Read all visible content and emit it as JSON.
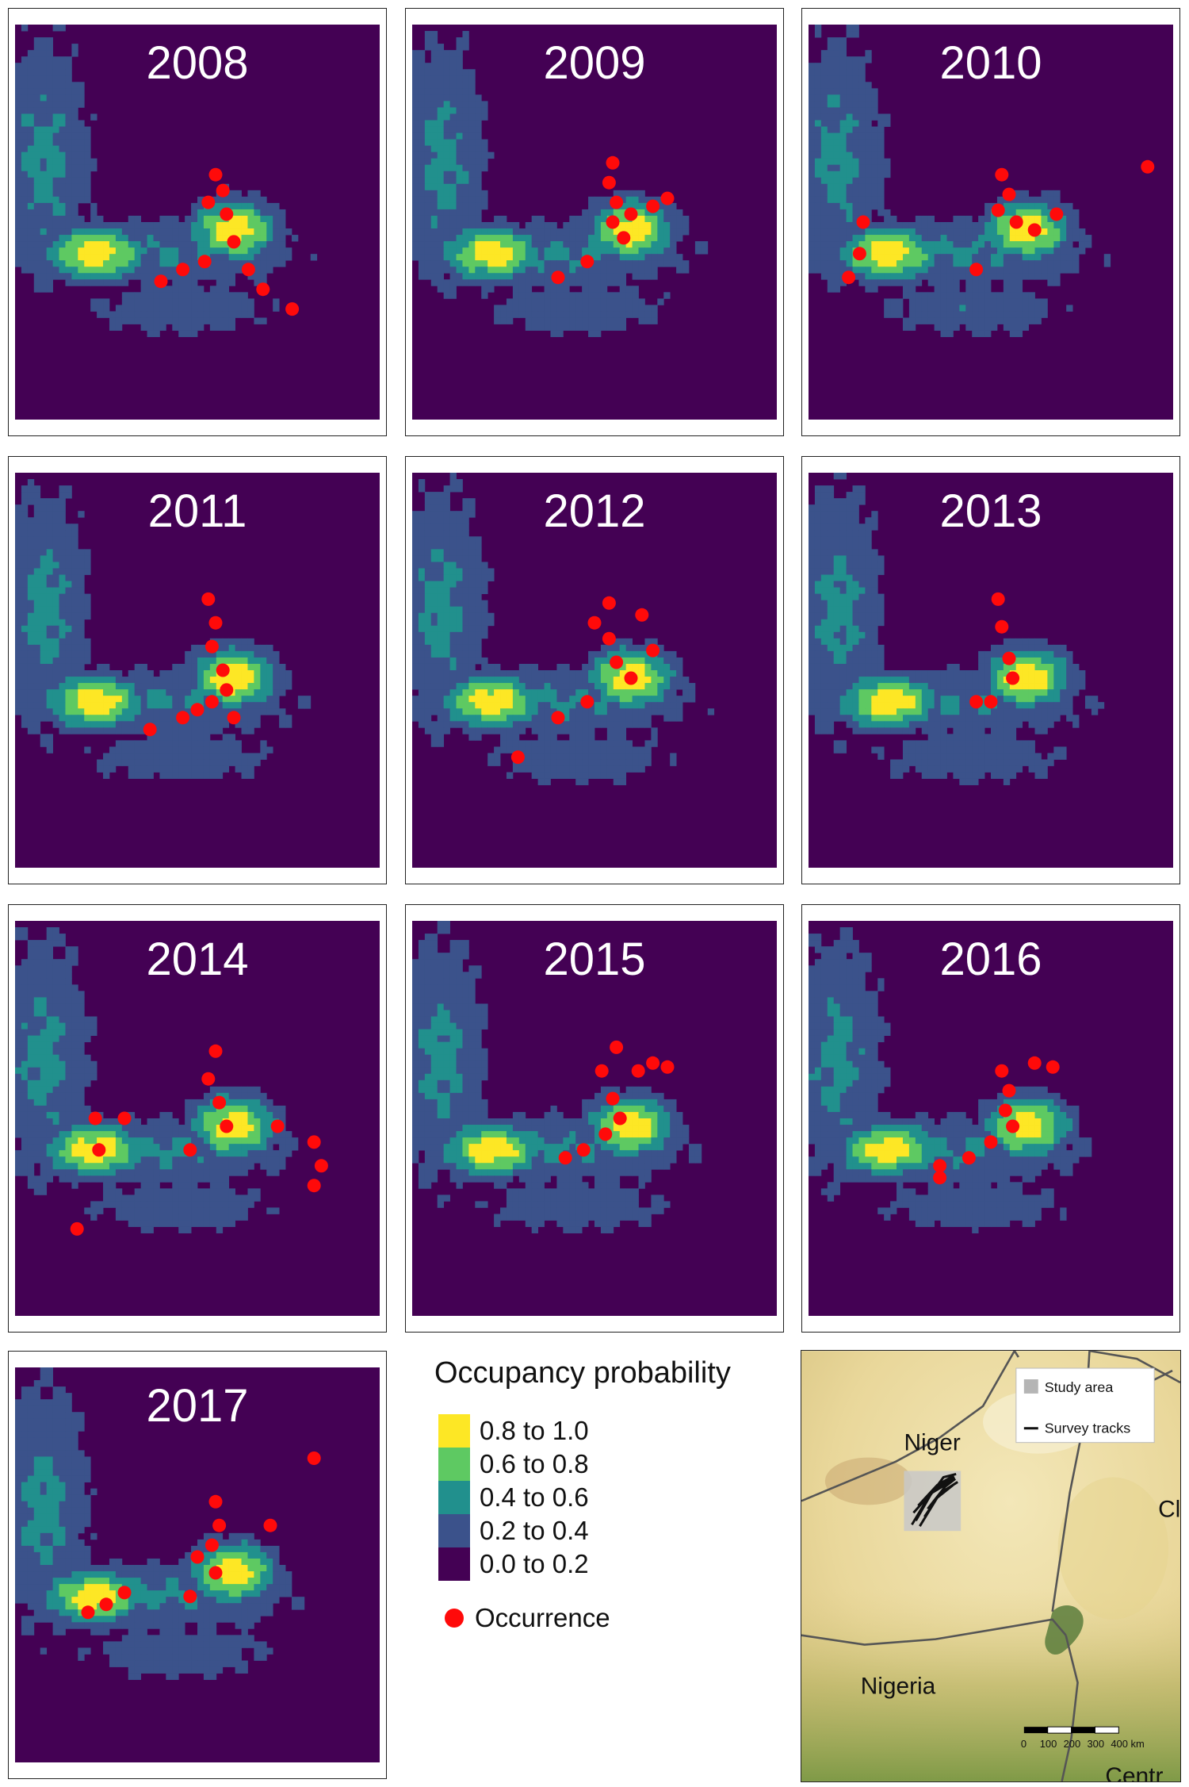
{
  "years": [
    "2008",
    "2009",
    "2010",
    "2011",
    "2012",
    "2013",
    "2014",
    "2015",
    "2016",
    "2017"
  ],
  "legend": {
    "title": "Occupancy probability",
    "classes": [
      {
        "label": "0.8 to 1.0",
        "color": "#fde725"
      },
      {
        "label": "0.6 to 0.8",
        "color": "#5ec962"
      },
      {
        "label": "0.4 to 0.6",
        "color": "#21908d"
      },
      {
        "label": "0.2 to 0.4",
        "color": "#3b528b"
      },
      {
        "label": "0.0 to 0.2",
        "color": "#440154"
      }
    ],
    "occurrence_label": "Occurrence",
    "occurrence_color": "#ff0a0a"
  },
  "inset": {
    "legend_study_area": "Study area",
    "legend_survey_tracks": "Survey tracks",
    "labels": {
      "niger": "Niger",
      "nigeria": "Nigeria",
      "chad_partial": "Cl",
      "centr_partial": "Centr"
    },
    "scalebar_ticks": [
      "0",
      "100",
      "200",
      "300",
      "400 km"
    ]
  },
  "colors": {
    "map_bg": "#440154",
    "grid_line": "#5a2a75",
    "study_area": "#c8c8c8",
    "terrain": "#e8d9a0"
  }
}
